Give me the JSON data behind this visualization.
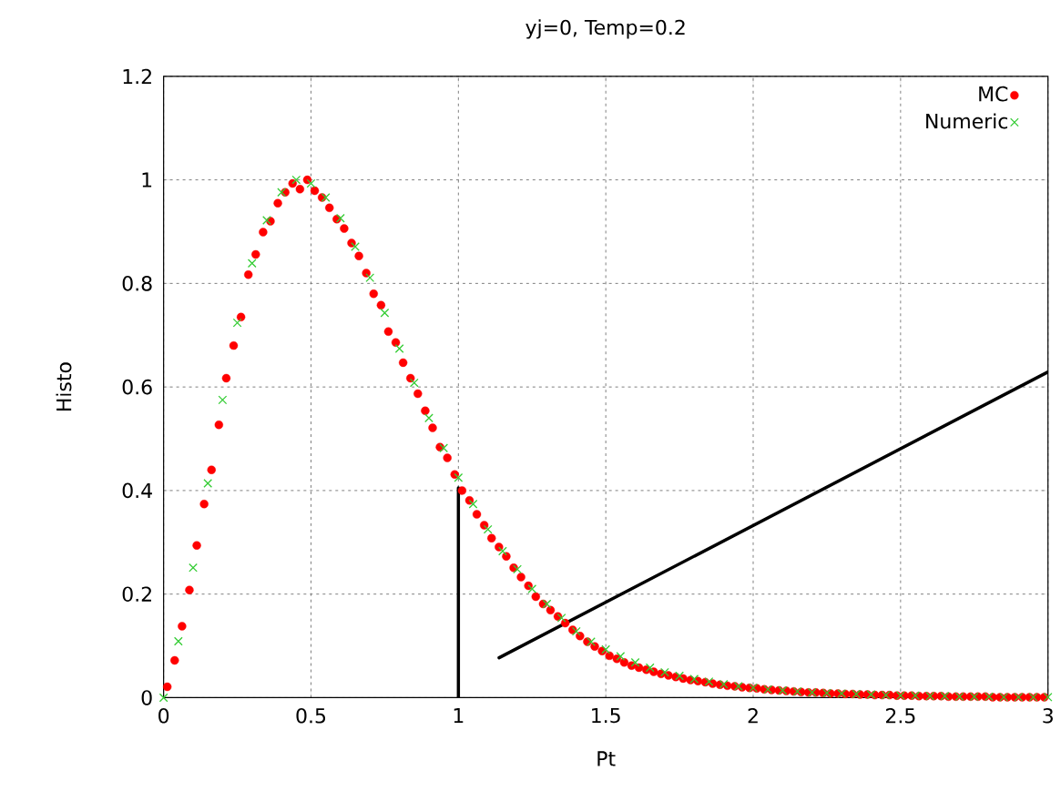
{
  "chart_data": {
    "type": "scatter",
    "title": "yj=0, Temp=0.2",
    "xlabel": "Pt",
    "ylabel": "Histo",
    "xlim": [
      0,
      3
    ],
    "ylim": [
      0,
      1.2
    ],
    "xticks": [
      0,
      0.5,
      1,
      1.5,
      2,
      2.5,
      3
    ],
    "yticks": [
      0,
      0.2,
      0.4,
      0.6,
      0.8,
      1,
      1.2
    ],
    "grid": true,
    "legend": "top right",
    "series": [
      {
        "name": "MC",
        "color": "#ff0000",
        "marker": "circle",
        "x": [
          0.0125,
          0.0375,
          0.0625,
          0.0875,
          0.1125,
          0.1375,
          0.1625,
          0.1875,
          0.2125,
          0.2375,
          0.2625,
          0.2875,
          0.3125,
          0.3375,
          0.3625,
          0.3875,
          0.4125,
          0.4375,
          0.4625,
          0.4875,
          0.5125,
          0.5375,
          0.5625,
          0.5875,
          0.6125,
          0.6375,
          0.6625,
          0.6875,
          0.7125,
          0.7375,
          0.7625,
          0.7875,
          0.8125,
          0.8375,
          0.8625,
          0.8875,
          0.9125,
          0.9375,
          0.9625,
          0.9875,
          1.0125,
          1.0375,
          1.0625,
          1.0875,
          1.1125,
          1.1375,
          1.1625,
          1.1875,
          1.2125,
          1.2375,
          1.2625,
          1.2875,
          1.3125,
          1.3375,
          1.3625,
          1.3875,
          1.4125,
          1.4375,
          1.4625,
          1.4875,
          1.5125,
          1.5375,
          1.5625,
          1.5875,
          1.6125,
          1.6375,
          1.6625,
          1.6875,
          1.7125,
          1.7375,
          1.7625,
          1.7875,
          1.8125,
          1.8375,
          1.8625,
          1.8875,
          1.9125,
          1.9375,
          1.9625,
          1.9875,
          2.0125,
          2.0375,
          2.0625,
          2.0875,
          2.1125,
          2.1375,
          2.1625,
          2.1875,
          2.2125,
          2.2375,
          2.2625,
          2.2875,
          2.3125,
          2.3375,
          2.3625,
          2.3875,
          2.4125,
          2.4375,
          2.4625,
          2.4875,
          2.5125,
          2.5375,
          2.5625,
          2.5875,
          2.6125,
          2.6375,
          2.6625,
          2.6875,
          2.7125,
          2.7375,
          2.7625,
          2.7875,
          2.8125,
          2.8375,
          2.8625,
          2.8875,
          2.9125,
          2.9375,
          2.9625,
          2.9875
        ],
        "values": [
          0.021,
          0.072,
          0.138,
          0.208,
          0.294,
          0.374,
          0.44,
          0.527,
          0.617,
          0.68,
          0.735,
          0.817,
          0.856,
          0.899,
          0.92,
          0.955,
          0.976,
          0.993,
          0.982,
          1.0,
          0.979,
          0.966,
          0.946,
          0.924,
          0.906,
          0.878,
          0.853,
          0.82,
          0.78,
          0.758,
          0.707,
          0.686,
          0.647,
          0.617,
          0.587,
          0.554,
          0.521,
          0.484,
          0.463,
          0.431,
          0.4,
          0.381,
          0.354,
          0.333,
          0.308,
          0.291,
          0.273,
          0.251,
          0.233,
          0.216,
          0.195,
          0.181,
          0.169,
          0.157,
          0.144,
          0.131,
          0.119,
          0.108,
          0.099,
          0.09,
          0.081,
          0.075,
          0.068,
          0.062,
          0.058,
          0.054,
          0.05,
          0.046,
          0.043,
          0.04,
          0.037,
          0.034,
          0.032,
          0.03,
          0.027,
          0.025,
          0.023,
          0.022,
          0.02,
          0.019,
          0.018,
          0.016,
          0.015,
          0.014,
          0.013,
          0.012,
          0.011,
          0.01,
          0.01,
          0.009,
          0.008,
          0.008,
          0.007,
          0.007,
          0.006,
          0.006,
          0.005,
          0.005,
          0.005,
          0.004,
          0.004,
          0.004,
          0.003,
          0.003,
          0.003,
          0.003,
          0.002,
          0.002,
          0.002,
          0.002,
          0.002,
          0.002,
          0.001,
          0.001,
          0.001,
          0.001,
          0.001,
          0.001,
          0.001,
          0.001
        ]
      },
      {
        "name": "Numeric",
        "color": "#33cc33",
        "marker": "cross",
        "x": [
          0,
          0.05,
          0.1,
          0.15,
          0.2,
          0.25,
          0.3,
          0.35,
          0.4,
          0.45,
          0.5,
          0.55,
          0.6,
          0.65,
          0.7,
          0.75,
          0.8,
          0.85,
          0.9,
          0.95,
          1.0,
          1.05,
          1.1,
          1.15,
          1.2,
          1.25,
          1.3,
          1.35,
          1.4,
          1.45,
          1.5,
          1.55,
          1.6,
          1.65,
          1.7,
          1.75,
          1.8,
          1.85,
          1.9,
          1.95,
          2.0,
          2.05,
          2.1,
          2.15,
          2.2,
          2.25,
          2.3,
          2.35,
          2.4,
          2.45,
          2.5,
          2.55,
          2.6,
          2.65,
          2.7,
          2.75,
          2.8,
          2.85,
          2.9,
          2.95,
          3.0
        ],
        "values": [
          0,
          0.109,
          0.251,
          0.414,
          0.575,
          0.724,
          0.839,
          0.922,
          0.976,
          1.0,
          0.993,
          0.966,
          0.926,
          0.871,
          0.811,
          0.743,
          0.674,
          0.608,
          0.54,
          0.482,
          0.425,
          0.374,
          0.325,
          0.283,
          0.248,
          0.21,
          0.181,
          0.154,
          0.128,
          0.108,
          0.093,
          0.08,
          0.068,
          0.058,
          0.049,
          0.042,
          0.036,
          0.031,
          0.026,
          0.022,
          0.019,
          0.016,
          0.014,
          0.012,
          0.01,
          0.009,
          0.008,
          0.007,
          0.006,
          0.005,
          0.004,
          0.004,
          0.003,
          0.003,
          0.002,
          0.002,
          0.002,
          0.001,
          0.001,
          0.001,
          0.001
        ]
      },
      {
        "type": "line",
        "color": "#000000",
        "marker": "none",
        "x": [
          1.138,
          3.0
        ],
        "values": [
          0.077,
          0.629
        ]
      },
      {
        "type": "line",
        "color": "#000000",
        "marker": "none",
        "x": [
          1.0,
          1.0
        ],
        "values": [
          0.0,
          0.405
        ]
      }
    ]
  }
}
